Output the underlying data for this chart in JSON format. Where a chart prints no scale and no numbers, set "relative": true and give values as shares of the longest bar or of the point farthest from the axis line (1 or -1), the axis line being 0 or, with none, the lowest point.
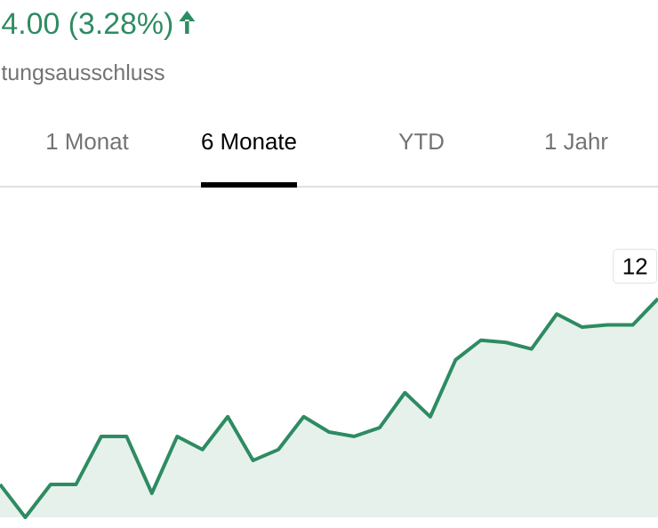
{
  "chart_data": {
    "type": "area",
    "title": "4.00 (3.28%)",
    "subtitle": "tungsausschluss",
    "relative": true,
    "color": "#2e8b62",
    "categories": [
      null,
      null,
      null,
      null,
      null,
      null,
      null,
      null,
      null,
      null,
      null,
      null,
      null,
      null,
      null,
      null,
      null,
      null,
      null,
      null,
      null,
      null,
      null,
      null,
      null,
      null,
      null
    ],
    "values": [
      0.15,
      0,
      0.15,
      0.15,
      0.37,
      0.37,
      0.11,
      0.37,
      0.31,
      0.46,
      0.26,
      0.31,
      0.46,
      0.39,
      0.37,
      0.41,
      0.57,
      0.46,
      0.72,
      0.81,
      0.8,
      0.77,
      0.93,
      0.87,
      0.88,
      0.88,
      1
    ],
    "annotations": [
      "1 Monat",
      "6 Monate",
      "YTD",
      "1 Jahr",
      "12"
    ]
  }
}
